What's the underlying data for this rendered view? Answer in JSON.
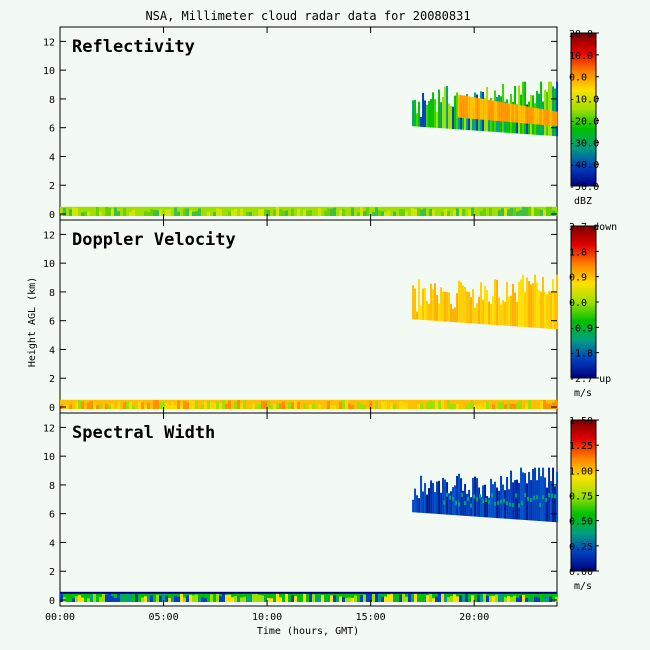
{
  "title": "NSA, Millimeter cloud radar data for 20080831",
  "chart_data": {
    "type": "heatmap",
    "xlabel": "Time (hours, GMT)",
    "xlim": [
      0,
      24
    ],
    "x_ticks": [
      "00:00",
      "05:00",
      "10:00",
      "15:00",
      "20:00"
    ],
    "x_tick_values": [
      0,
      5,
      10,
      15,
      20
    ],
    "ylabel": "Height AGL (km)",
    "ylim": [
      0,
      13
    ],
    "y_ticks": [
      "0",
      "2",
      "4",
      "6",
      "8",
      "10",
      "12"
    ],
    "y_tick_values": [
      0,
      2,
      4,
      6,
      8,
      10,
      12
    ],
    "cloud_layer": {
      "time_start": 17,
      "time_end": 24,
      "base_km": [
        6.1,
        5.4
      ],
      "top_km": [
        7.0,
        8.8
      ]
    },
    "surface_layer": {
      "time_start": 0,
      "time_end": 24,
      "top_km": 0.5
    },
    "panels": [
      {
        "name": "Reflectivity",
        "colorbar_ticks": [
          "20.0",
          "10.0",
          "0.0",
          "-10.0",
          "-20.0",
          "-30.0",
          "-40.0",
          "-50.0"
        ],
        "colorbar_range": [
          -50,
          20
        ],
        "unit": "dBZ",
        "colormap": [
          "#00007f",
          "#0040c0",
          "#00a080",
          "#00c000",
          "#a0e000",
          "#ffe000",
          "#ff8000",
          "#e00000",
          "#7f0000"
        ]
      },
      {
        "name": "Doppler Velocity",
        "colorbar_ticks": [
          "2.7 down",
          "1.8",
          "0.9",
          "0.0",
          "-0.9",
          "-1.8",
          "-2.7 up"
        ],
        "colorbar_range": [
          -2.7,
          2.7
        ],
        "unit": "m/s",
        "colormap": [
          "#00007f",
          "#0040c0",
          "#00a080",
          "#00c000",
          "#a0e000",
          "#ffe000",
          "#ff8000",
          "#e00000",
          "#7f0000"
        ]
      },
      {
        "name": "Spectral Width",
        "colorbar_ticks": [
          "1.50",
          "1.25",
          "1.00",
          "0.75",
          "0.50",
          "0.25",
          "0.00"
        ],
        "colorbar_range": [
          0,
          1.5
        ],
        "unit": "m/s",
        "colormap": [
          "#00007f",
          "#0040c0",
          "#00a080",
          "#00c000",
          "#a0e000",
          "#ffe000",
          "#ff8000",
          "#e00000",
          "#7f0000"
        ]
      }
    ]
  }
}
